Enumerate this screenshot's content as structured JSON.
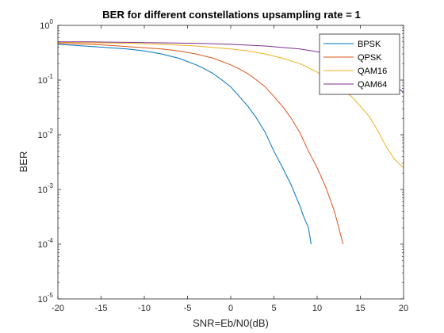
{
  "chart_data": {
    "type": "line",
    "title": "BER for different constellations upsampling rate = 1",
    "xlabel": "SNR=Eb/N0(dB)",
    "ylabel": "BER",
    "xlim": [
      -20,
      20
    ],
    "ylim": [
      1e-05,
      1
    ],
    "yscale": "log",
    "x_ticks": [
      -20,
      -15,
      -10,
      -5,
      0,
      5,
      10,
      15,
      20
    ],
    "x_tick_labels": [
      "-20",
      "-15",
      "-10",
      "-5",
      "0",
      "5",
      "10",
      "15",
      "20"
    ],
    "y_ticks": [
      1,
      0.1,
      0.01,
      0.001,
      0.0001,
      1e-05
    ],
    "y_tick_labels": [
      {
        "base": "10",
        "exp": "0"
      },
      {
        "base": "10",
        "exp": "-1"
      },
      {
        "base": "10",
        "exp": "-2"
      },
      {
        "base": "10",
        "exp": "-3"
      },
      {
        "base": "10",
        "exp": "-4"
      },
      {
        "base": "10",
        "exp": "-5"
      }
    ],
    "grid": false,
    "legend_position": "top-right",
    "series": [
      {
        "name": "BPSK",
        "color": "#0072BD",
        "x": [
          -20,
          -18,
          -16,
          -14,
          -12,
          -10,
          -8,
          -6,
          -4,
          -3,
          -2,
          -1,
          0,
          1,
          2,
          3,
          4,
          5,
          6,
          7,
          8,
          8.5,
          9,
          9.3
        ],
        "y": [
          0.45,
          0.43,
          0.41,
          0.39,
          0.37,
          0.34,
          0.3,
          0.25,
          0.19,
          0.16,
          0.13,
          0.1,
          0.075,
          0.05,
          0.033,
          0.02,
          0.011,
          0.005,
          0.0025,
          0.0012,
          0.0005,
          0.0003,
          0.0002,
          0.0001
        ]
      },
      {
        "name": "QPSK",
        "color": "#D95319",
        "x": [
          -20,
          -18,
          -16,
          -14,
          -12,
          -10,
          -8,
          -6,
          -4,
          -2,
          0,
          1,
          2,
          3,
          4,
          5,
          6,
          7,
          8,
          9,
          10,
          11,
          12,
          12.5,
          13
        ],
        "y": [
          0.47,
          0.46,
          0.45,
          0.43,
          0.41,
          0.39,
          0.37,
          0.34,
          0.3,
          0.25,
          0.19,
          0.16,
          0.13,
          0.1,
          0.075,
          0.05,
          0.033,
          0.02,
          0.011,
          0.005,
          0.0025,
          0.0011,
          0.0004,
          0.0002,
          0.0001
        ]
      },
      {
        "name": "QAM16",
        "color": "#EDB120",
        "x": [
          -20,
          -16,
          -12,
          -8,
          -4,
          0,
          2,
          4,
          6,
          8,
          10,
          12,
          14,
          16,
          17,
          18,
          19,
          20
        ],
        "y": [
          0.49,
          0.48,
          0.47,
          0.45,
          0.42,
          0.37,
          0.34,
          0.3,
          0.25,
          0.2,
          0.14,
          0.085,
          0.05,
          0.022,
          0.012,
          0.006,
          0.0035,
          0.0025
        ]
      },
      {
        "name": "QAM64",
        "color": "#7E2F8E",
        "x": [
          -20,
          -16,
          -12,
          -8,
          -4,
          0,
          4,
          8,
          10,
          12,
          14,
          16,
          18,
          20
        ],
        "y": [
          0.5,
          0.5,
          0.49,
          0.48,
          0.47,
          0.45,
          0.42,
          0.37,
          0.33,
          0.28,
          0.22,
          0.15,
          0.1,
          0.06
        ]
      }
    ]
  }
}
